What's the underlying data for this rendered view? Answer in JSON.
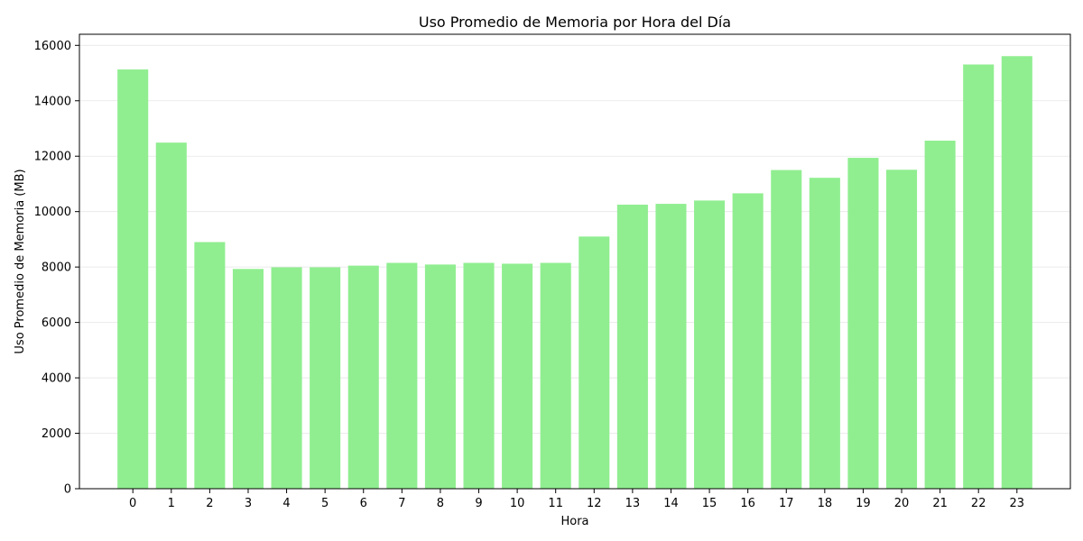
{
  "chart_data": {
    "type": "bar",
    "title": "Uso Promedio de Memoria por Hora del Día",
    "xlabel": "Hora",
    "ylabel": "Uso Promedio de Memoria (MB)",
    "categories": [
      "0",
      "1",
      "2",
      "3",
      "4",
      "5",
      "6",
      "7",
      "8",
      "9",
      "10",
      "11",
      "12",
      "13",
      "14",
      "15",
      "16",
      "17",
      "18",
      "19",
      "20",
      "21",
      "22",
      "23"
    ],
    "values": [
      15130,
      12490,
      8900,
      7930,
      7990,
      7990,
      8050,
      8150,
      8090,
      8150,
      8120,
      8150,
      9100,
      10250,
      10280,
      10400,
      10660,
      11500,
      11220,
      11940,
      11510,
      12560,
      15310,
      15610
    ],
    "ylim": [
      0,
      16400
    ],
    "yticks": [
      0,
      2000,
      4000,
      6000,
      8000,
      10000,
      12000,
      14000,
      16000
    ],
    "grid": "horizontal",
    "bar_color": "#90EE90"
  }
}
